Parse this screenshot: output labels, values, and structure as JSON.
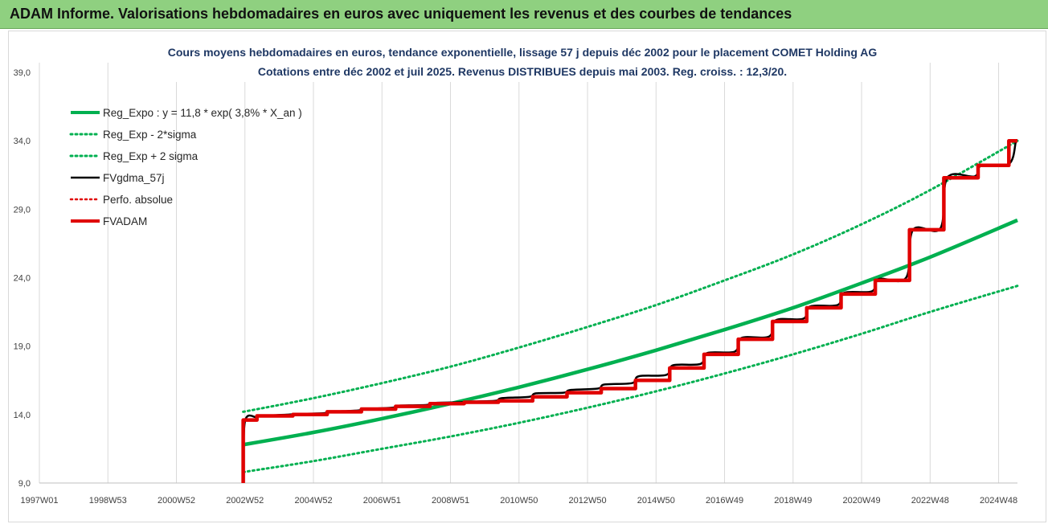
{
  "header": {
    "title": "ADAM Informe. Valorisations hebdomadaires en euros avec uniquement les revenus et des courbes de tendances"
  },
  "chart_data": {
    "type": "line",
    "title": "Cours moyens hebdomadaires en euros, tendance exponentielle, lissage 57 j depuis déc 2002 pour le placement COMET Holding AG",
    "subtitle": "Cotations entre déc 2002 et juil 2025. Revenus DISTRIBUES depuis mai 2003. Reg. croiss. : 12,3/20.",
    "xlabel": "",
    "ylabel": "",
    "x_ticks": [
      "1997W01",
      "1998W53",
      "2000W52",
      "2002W52",
      "2004W52",
      "2006W51",
      "2008W51",
      "2010W50",
      "2012W50",
      "2014W50",
      "2016W49",
      "2018W49",
      "2020W49",
      "2022W48",
      "2024W48"
    ],
    "x_tick_years": [
      1997.0,
      1999.0,
      2001.0,
      2003.0,
      2005.0,
      2007.0,
      2009.0,
      2011.0,
      2013.0,
      2015.0,
      2017.0,
      2019.0,
      2021.0,
      2023.0,
      2025.0
    ],
    "xlim": [
      1997.0,
      2025.55
    ],
    "y_ticks": [
      "9,0",
      "14,0",
      "19,0",
      "24,0",
      "29,0",
      "34,0",
      "39,0"
    ],
    "y_tick_values": [
      9,
      14,
      19,
      24,
      29,
      34,
      39
    ],
    "ylim": [
      9,
      39
    ],
    "grid": "vertical",
    "legend_position": "top-left",
    "series": [
      {
        "name": "Reg_Expo : y = 11,8 * exp( 3,8% *  X_an )",
        "color": "#00b050",
        "style": "solid",
        "x": [
          2002.95,
          2005,
          2007,
          2009,
          2011,
          2013,
          2015,
          2017,
          2019,
          2021,
          2023,
          2025.55
        ],
        "y": [
          11.8,
          12.7,
          13.7,
          14.8,
          16.0,
          17.3,
          18.7,
          20.2,
          21.8,
          23.6,
          25.5,
          28.2
        ]
      },
      {
        "name": "Reg_Exp - 2*sigma",
        "color": "#00b050",
        "style": "dotted",
        "x": [
          2002.95,
          2005,
          2007,
          2009,
          2011,
          2013,
          2015,
          2017,
          2019,
          2021,
          2023,
          2025.55
        ],
        "y": [
          9.8,
          10.6,
          11.5,
          12.4,
          13.4,
          14.5,
          15.7,
          17.0,
          18.4,
          19.9,
          21.5,
          23.4
        ]
      },
      {
        "name": "Reg_Exp + 2 sigma",
        "color": "#00b050",
        "style": "dotted",
        "x": [
          2002.95,
          2005,
          2007,
          2009,
          2011,
          2013,
          2015,
          2017,
          2019,
          2021,
          2023,
          2025.55
        ],
        "y": [
          14.2,
          15.2,
          16.3,
          17.5,
          18.9,
          20.4,
          22.0,
          23.8,
          25.7,
          27.9,
          30.4,
          34.0
        ]
      },
      {
        "name": "FVgdma_57j",
        "color": "#000000",
        "style": "solid",
        "x": [
          2002.95,
          2003.0,
          2003.35,
          2003.5,
          2004.3,
          2004.5,
          2005.3,
          2005.5,
          2006.3,
          2006.5,
          2007.3,
          2007.5,
          2008.3,
          2008.5,
          2009.3,
          2009.5,
          2010.3,
          2010.5,
          2011.3,
          2011.5,
          2012.3,
          2012.5,
          2013.3,
          2013.5,
          2014.3,
          2014.5,
          2015.3,
          2015.5,
          2016.3,
          2016.5,
          2017.3,
          2017.5,
          2018.3,
          2018.5,
          2019.3,
          2019.5,
          2020.3,
          2020.5,
          2021.3,
          2021.5,
          2022.3,
          2022.5,
          2023.3,
          2023.5,
          2024.3,
          2024.5,
          2025.3,
          2025.5
        ],
        "y": [
          9.0,
          13.5,
          13.8,
          13.9,
          14.0,
          14.05,
          14.1,
          14.2,
          14.3,
          14.4,
          14.5,
          14.65,
          14.7,
          14.85,
          14.9,
          14.95,
          15.0,
          15.2,
          15.3,
          15.55,
          15.6,
          15.8,
          15.9,
          16.2,
          16.3,
          16.8,
          16.9,
          17.6,
          17.7,
          18.5,
          18.6,
          19.6,
          19.7,
          20.9,
          21.0,
          21.9,
          22.0,
          22.9,
          23.0,
          23.9,
          24.0,
          27.5,
          27.6,
          31.3,
          31.4,
          32.2,
          32.3,
          33.9
        ]
      },
      {
        "name": "Perfo. absolue",
        "color": "#e00000",
        "style": "dotted",
        "x": [],
        "y": []
      },
      {
        "name": "FVADAM",
        "color": "#e00000",
        "style": "solid",
        "x": [
          2002.95,
          2002.95,
          2003.35,
          2003.35,
          2004.4,
          2004.4,
          2005.4,
          2005.4,
          2006.4,
          2006.4,
          2007.4,
          2007.4,
          2008.4,
          2008.4,
          2009.4,
          2009.4,
          2010.4,
          2010.4,
          2011.4,
          2011.4,
          2012.4,
          2012.4,
          2013.4,
          2013.4,
          2014.4,
          2014.4,
          2015.4,
          2015.4,
          2016.4,
          2016.4,
          2017.4,
          2017.4,
          2018.4,
          2018.4,
          2019.4,
          2019.4,
          2020.4,
          2020.4,
          2021.4,
          2021.4,
          2022.4,
          2022.4,
          2023.4,
          2023.4,
          2024.4,
          2024.4,
          2025.3,
          2025.3,
          2025.55
        ],
        "y": [
          9.0,
          13.6,
          13.6,
          13.9,
          13.9,
          14.0,
          14.0,
          14.2,
          14.2,
          14.4,
          14.4,
          14.6,
          14.6,
          14.8,
          14.8,
          14.9,
          14.9,
          15.0,
          15.0,
          15.3,
          15.3,
          15.6,
          15.6,
          15.9,
          15.9,
          16.5,
          16.5,
          17.4,
          17.4,
          18.4,
          18.4,
          19.5,
          19.5,
          20.8,
          20.8,
          21.8,
          21.8,
          22.8,
          22.8,
          23.8,
          23.8,
          27.5,
          27.5,
          31.3,
          31.3,
          32.2,
          32.2,
          34.0,
          34.0
        ]
      }
    ]
  }
}
